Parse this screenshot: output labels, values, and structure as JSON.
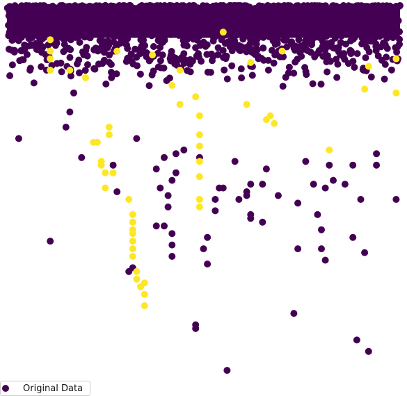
{
  "chart_data": {
    "type": "scatter",
    "title": "",
    "xlabel": "",
    "ylabel": "",
    "axes_visible": false,
    "grid": false,
    "xlim": [
      0,
      10
    ],
    "ylim": [
      -10,
      0
    ],
    "colormap": "viridis",
    "colors": {
      "class_0": "#440154",
      "class_1": "#fde725"
    },
    "legend": {
      "location": "lower-left",
      "entries": [
        "Original Data"
      ]
    },
    "series": [
      {
        "class": 0,
        "dense_band": {
          "x_range": [
            0,
            10
          ],
          "y_range": [
            -1.8,
            0
          ],
          "note_count": 1500
        },
        "points": [
          [
            0.3,
            -3.5
          ],
          [
            1.1,
            -6.2
          ],
          [
            1.5,
            -3.2
          ],
          [
            1.6,
            -2.8
          ],
          [
            1.7,
            -2.3
          ],
          [
            1.9,
            -4.0
          ],
          [
            2.7,
            -4.2
          ],
          [
            2.8,
            -4.9
          ],
          [
            3.1,
            -7.0
          ],
          [
            3.2,
            -6.9
          ],
          [
            3.3,
            -3.5
          ],
          [
            3.8,
            -4.3
          ],
          [
            3.8,
            -5.8
          ],
          [
            3.9,
            -4.8
          ],
          [
            4.0,
            -4.0
          ],
          [
            4.0,
            -5.8
          ],
          [
            4.1,
            -5.0
          ],
          [
            4.1,
            -5.3
          ],
          [
            4.2,
            -4.6
          ],
          [
            4.2,
            -6.0
          ],
          [
            4.2,
            -6.3
          ],
          [
            4.2,
            -6.6
          ],
          [
            4.3,
            -3.9
          ],
          [
            4.3,
            -4.4
          ],
          [
            4.5,
            -3.8
          ],
          [
            4.8,
            -8.4
          ],
          [
            4.8,
            -8.5
          ],
          [
            4.9,
            -4.0
          ],
          [
            5.0,
            -6.4
          ],
          [
            5.1,
            -6.1
          ],
          [
            5.1,
            -6.8
          ],
          [
            5.3,
            -5.4
          ],
          [
            5.3,
            -5.1
          ],
          [
            5.4,
            -4.8
          ],
          [
            5.5,
            -4.8
          ],
          [
            5.6,
            -9.6
          ],
          [
            5.8,
            -4.1
          ],
          [
            5.9,
            -5.1
          ],
          [
            6.1,
            -5.0
          ],
          [
            6.1,
            -4.9
          ],
          [
            6.2,
            -4.7
          ],
          [
            6.2,
            -5.5
          ],
          [
            6.2,
            -5.6
          ],
          [
            6.5,
            -4.7
          ],
          [
            6.5,
            -5.7
          ],
          [
            6.6,
            -4.3
          ],
          [
            6.9,
            -5.0
          ],
          [
            7.3,
            -8.1
          ],
          [
            7.4,
            -6.4
          ],
          [
            7.4,
            -5.2
          ],
          [
            7.6,
            -4.1
          ],
          [
            7.8,
            -4.7
          ],
          [
            7.9,
            -5.5
          ],
          [
            8.0,
            -5.9
          ],
          [
            8.0,
            -6.4
          ],
          [
            8.1,
            -4.8
          ],
          [
            8.1,
            -6.7
          ],
          [
            8.2,
            -4.2
          ],
          [
            8.3,
            -4.6
          ],
          [
            8.6,
            -4.7
          ],
          [
            8.8,
            -6.1
          ],
          [
            8.8,
            -4.2
          ],
          [
            8.9,
            -8.8
          ],
          [
            9.0,
            -5.1
          ],
          [
            9.1,
            -6.5
          ],
          [
            9.2,
            -9.1
          ],
          [
            9.4,
            -3.9
          ],
          [
            9.4,
            -4.2
          ],
          [
            9.9,
            -5.1
          ]
        ]
      },
      {
        "class": 1,
        "points": [
          [
            1.1,
            -0.9
          ],
          [
            1.1,
            -1.2
          ],
          [
            1.1,
            -1.4
          ],
          [
            1.1,
            -1.7
          ],
          [
            1.6,
            -1.7
          ],
          [
            2.0,
            -1.9
          ],
          [
            2.2,
            -3.6
          ],
          [
            2.3,
            -3.6
          ],
          [
            2.4,
            -4.1
          ],
          [
            2.4,
            -4.2
          ],
          [
            2.5,
            -4.4
          ],
          [
            2.6,
            -3.4
          ],
          [
            2.5,
            -4.8
          ],
          [
            2.6,
            -3.2
          ],
          [
            2.7,
            -4.4
          ],
          [
            2.8,
            -1.2
          ],
          [
            3.1,
            -5.1
          ],
          [
            3.2,
            -5.5
          ],
          [
            3.2,
            -5.7
          ],
          [
            3.2,
            -5.9
          ],
          [
            3.2,
            -6.0
          ],
          [
            3.2,
            -6.2
          ],
          [
            3.2,
            -6.4
          ],
          [
            3.2,
            -6.6
          ],
          [
            3.3,
            -7.0
          ],
          [
            3.3,
            -7.2
          ],
          [
            3.4,
            -7.4
          ],
          [
            3.5,
            -7.3
          ],
          [
            3.5,
            -7.6
          ],
          [
            3.5,
            -7.9
          ],
          [
            4.4,
            -1.7
          ],
          [
            4.2,
            -2.1
          ],
          [
            4.4,
            -2.6
          ],
          [
            4.8,
            -2.4
          ],
          [
            4.9,
            -3.4
          ],
          [
            4.9,
            -3.7
          ],
          [
            4.9,
            -4.1
          ],
          [
            4.9,
            -4.5
          ],
          [
            4.9,
            -5.1
          ],
          [
            4.9,
            -5.3
          ],
          [
            4.9,
            -2.9
          ],
          [
            6.1,
            -2.6
          ],
          [
            6.2,
            -1.5
          ],
          [
            6.6,
            -3.0
          ],
          [
            6.7,
            -2.9
          ],
          [
            6.8,
            -3.1
          ],
          [
            7.0,
            -1.2
          ],
          [
            8.2,
            -3.8
          ],
          [
            9.2,
            -1.6
          ],
          [
            9.1,
            -2.2
          ],
          [
            9.9,
            -1.4
          ],
          [
            9.9,
            -2.3
          ],
          [
            5.5,
            -0.7
          ],
          [
            3.7,
            -1.3
          ]
        ]
      }
    ]
  }
}
